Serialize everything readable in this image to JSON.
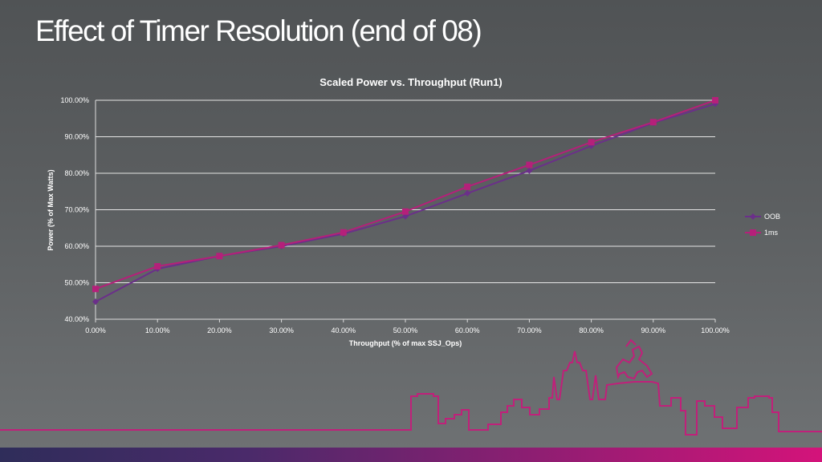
{
  "slide": {
    "title": "Effect of Timer Resolution (end of 08)"
  },
  "chart_data": {
    "type": "line",
    "title": "Scaled Power vs. Throughput (Run1)",
    "xlabel": "Throughput (% of max SSJ_Ops)",
    "ylabel": "Power (% of Max Watts)",
    "x": [
      0,
      10,
      20,
      30,
      40,
      50,
      60,
      70,
      80,
      90,
      100
    ],
    "x_tick_labels": [
      "0.00%",
      "10.00%",
      "20.00%",
      "30.00%",
      "40.00%",
      "50.00%",
      "60.00%",
      "70.00%",
      "80.00%",
      "90.00%",
      "100.00%"
    ],
    "y_ticks": [
      40,
      50,
      60,
      70,
      80,
      90,
      100
    ],
    "y_tick_labels": [
      "40.00%",
      "50.00%",
      "60.00%",
      "70.00%",
      "80.00%",
      "90.00%",
      "100.00%"
    ],
    "xlim": [
      0,
      100
    ],
    "ylim": [
      40,
      100
    ],
    "grid": "horizontal",
    "legend_position": "right",
    "series": [
      {
        "name": "OOB",
        "marker": "diamond",
        "color": "#6b2f8a",
        "values": [
          44.8,
          53.8,
          57.3,
          60.0,
          63.4,
          68.2,
          74.5,
          80.7,
          87.5,
          93.8,
          99.0
        ]
      },
      {
        "name": "1ms",
        "marker": "square",
        "color": "#b5207a",
        "values": [
          48.3,
          54.5,
          57.3,
          60.3,
          63.8,
          69.5,
          76.3,
          82.3,
          88.5,
          94.0,
          100.0
        ]
      }
    ]
  }
}
